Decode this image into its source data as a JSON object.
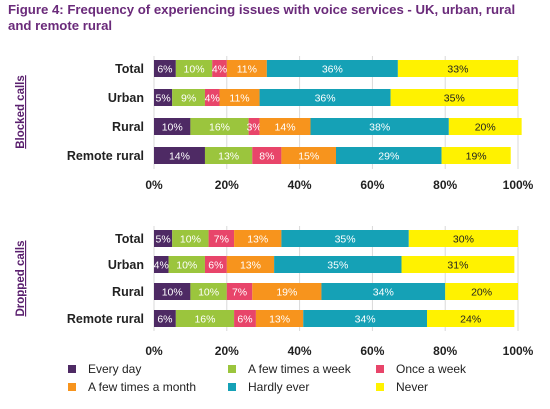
{
  "title": "Figure 4: Frequency of experiencing issues with voice services - UK, urban, rural and remote rural",
  "colors": {
    "Every day": "#4e2a64",
    "A few times a week": "#9bc53d",
    "Once a week": "#e8456a",
    "A few times a month": "#f7941d",
    "Hardly ever": "#15a1b6",
    "Never": "#fff200"
  },
  "label_text_colors": {
    "Every day": "#ffffff",
    "A few times a week": "#ffffff",
    "Once a week": "#ffffff",
    "A few times a month": "#ffffff",
    "Hardly ever": "#ffffff",
    "Never": "#222222"
  },
  "chart_data": [
    {
      "type": "bar",
      "orientation": "horizontal-stacked",
      "group_label": "Blocked calls",
      "categories": [
        "Total",
        "Urban",
        "Rural",
        "Remote rural"
      ],
      "series": [
        {
          "name": "Every day",
          "values": [
            6,
            5,
            10,
            14
          ]
        },
        {
          "name": "A few times a week",
          "values": [
            10,
            9,
            16,
            13
          ]
        },
        {
          "name": "Once a week",
          "values": [
            4,
            4,
            3,
            8
          ]
        },
        {
          "name": "A few times a month",
          "values": [
            11,
            11,
            14,
            15
          ]
        },
        {
          "name": "Hardly ever",
          "values": [
            36,
            36,
            38,
            29
          ]
        },
        {
          "name": "Never",
          "values": [
            33,
            35,
            20,
            19
          ]
        }
      ],
      "xlim": [
        0,
        100
      ],
      "xticks": [
        "0%",
        "20%",
        "40%",
        "60%",
        "80%",
        "100%"
      ]
    },
    {
      "type": "bar",
      "orientation": "horizontal-stacked",
      "group_label": "Dropped calls",
      "categories": [
        "Total",
        "Urban",
        "Rural",
        "Remote rural"
      ],
      "series": [
        {
          "name": "Every day",
          "values": [
            5,
            4,
            10,
            6
          ]
        },
        {
          "name": "A few times a week",
          "values": [
            10,
            10,
            10,
            16
          ]
        },
        {
          "name": "Once a week",
          "values": [
            7,
            6,
            7,
            6
          ]
        },
        {
          "name": "A few times a month",
          "values": [
            13,
            13,
            19,
            13
          ]
        },
        {
          "name": "Hardly ever",
          "values": [
            35,
            35,
            34,
            34
          ]
        },
        {
          "name": "Never",
          "values": [
            30,
            31,
            20,
            24
          ]
        }
      ],
      "xlim": [
        0,
        100
      ],
      "xticks": [
        "0%",
        "20%",
        "40%",
        "60%",
        "80%",
        "100%"
      ]
    }
  ],
  "legend": [
    "Every day",
    "A few times a week",
    "Once a week",
    "A few times a month",
    "Hardly ever",
    "Never"
  ]
}
